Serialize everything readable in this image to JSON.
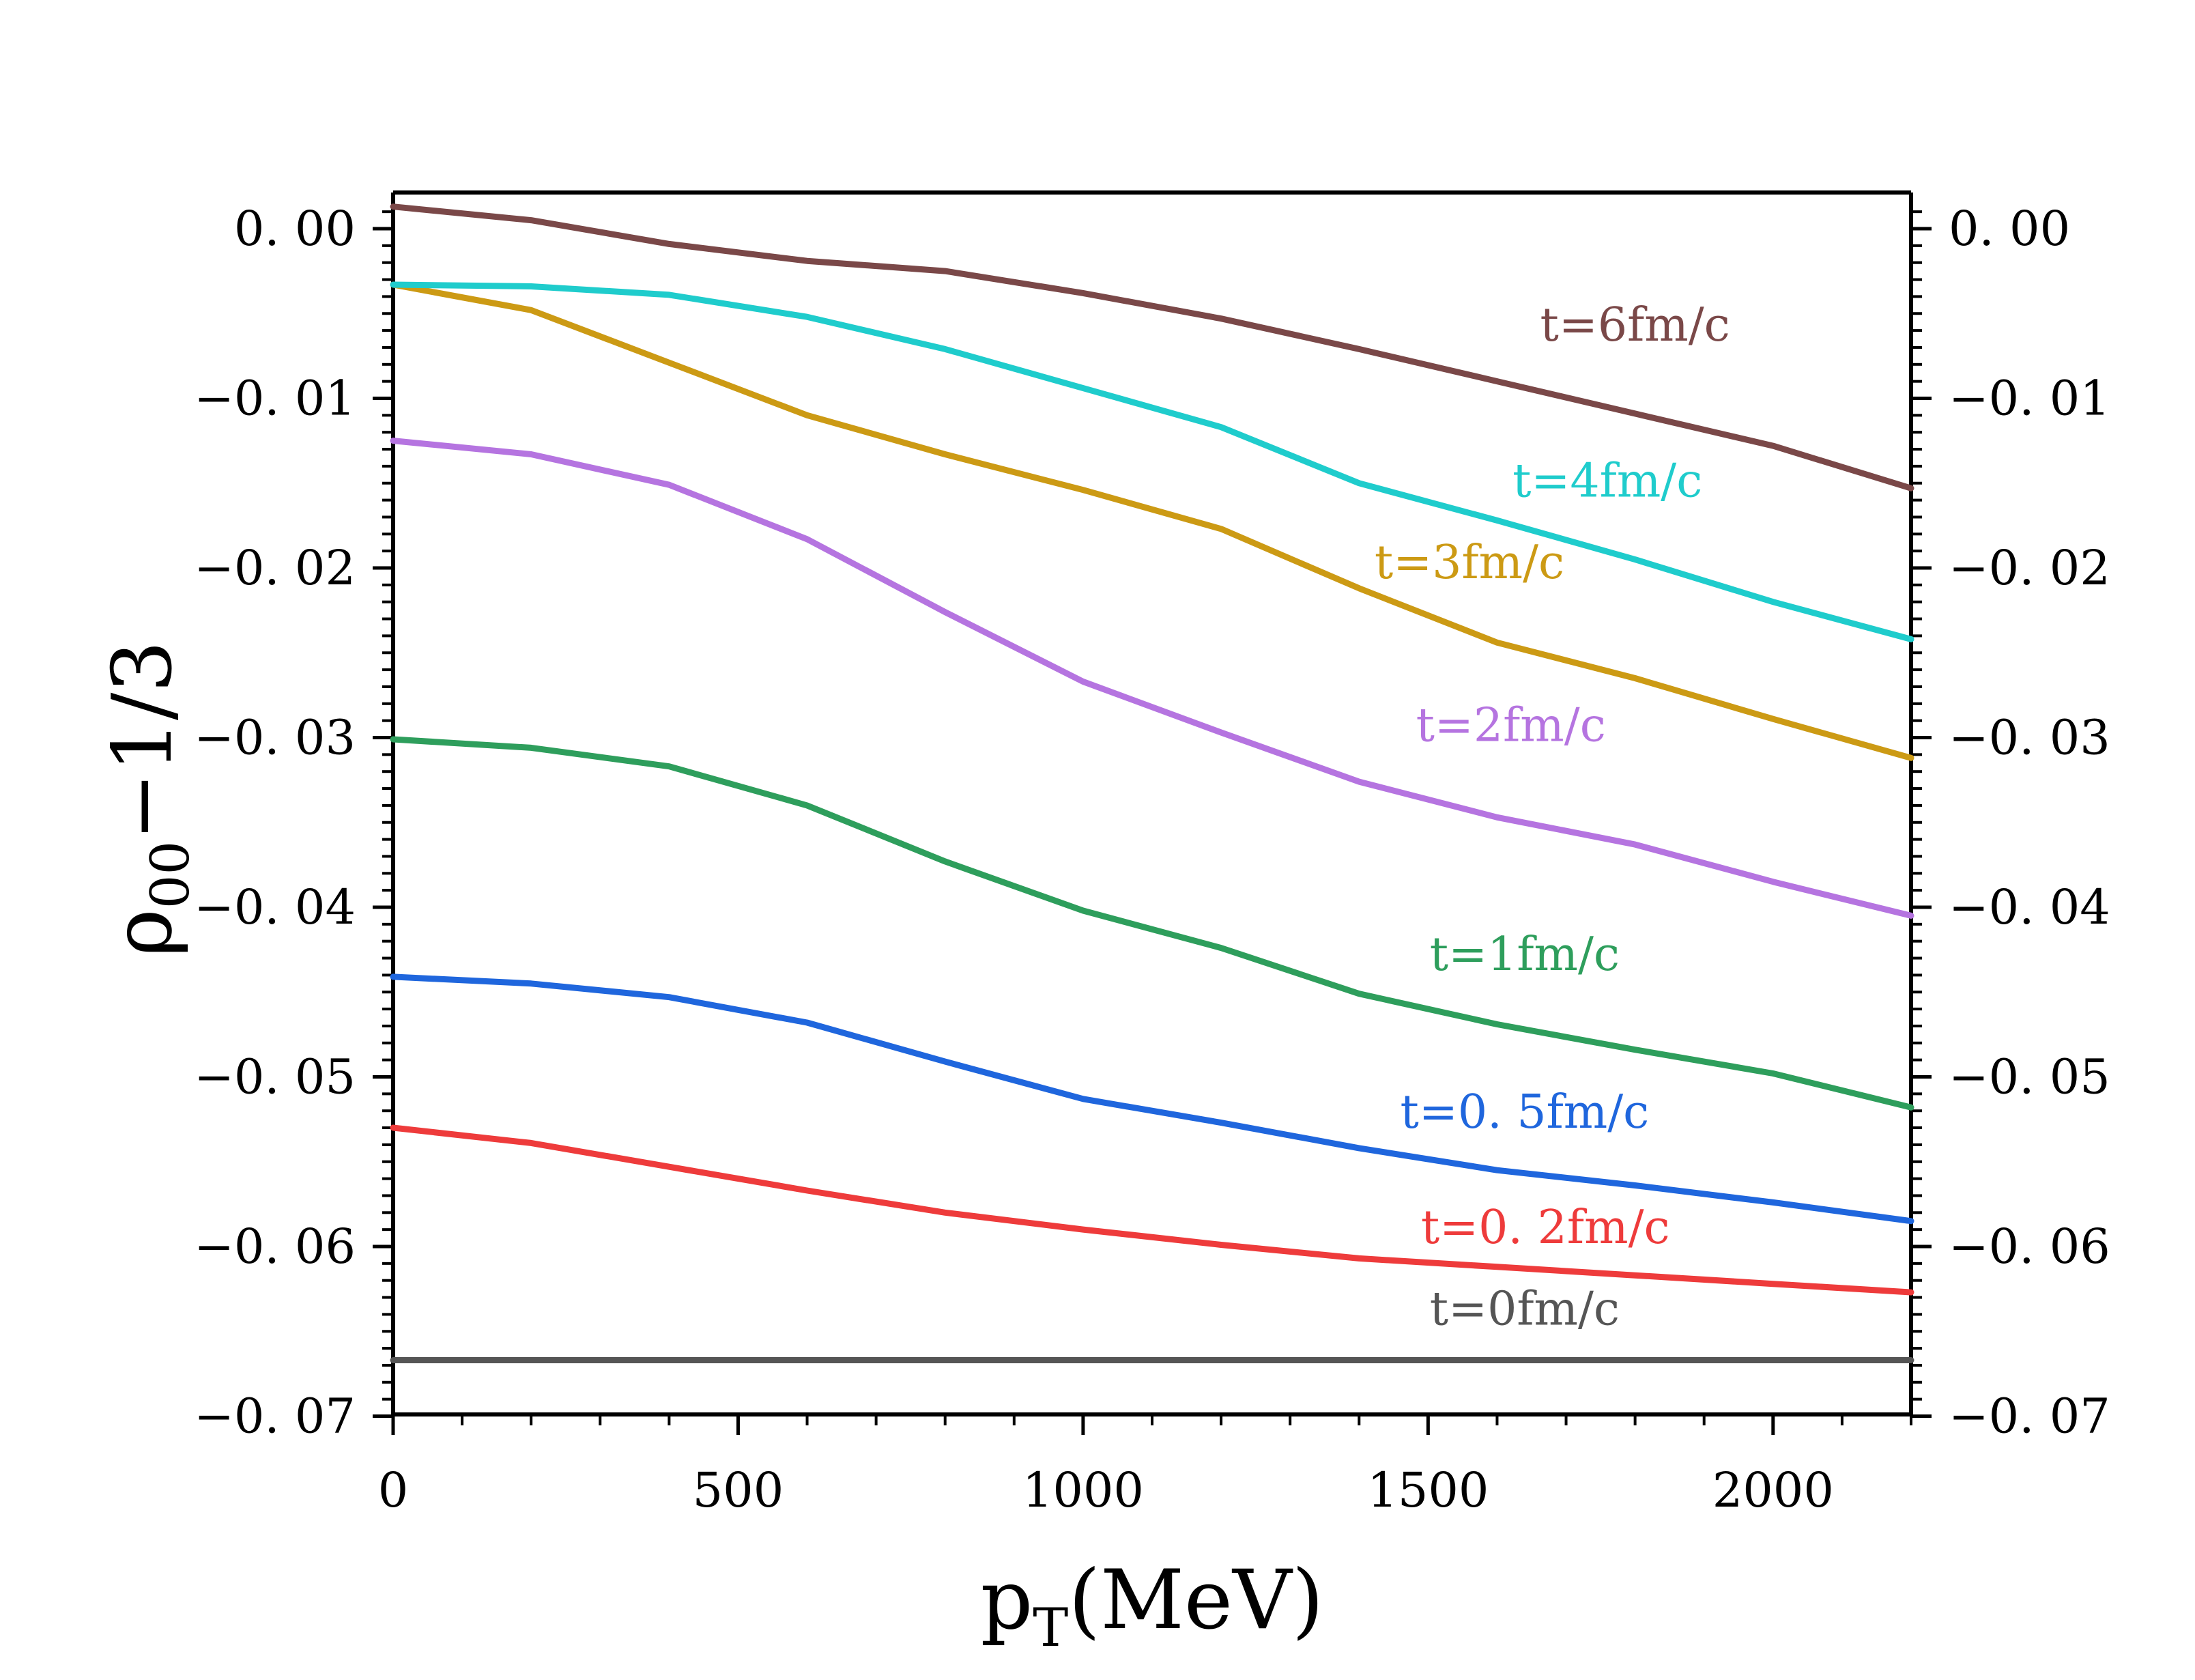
{
  "chart_data": {
    "type": "line",
    "title": "",
    "xlabel": "p_T (MeV)",
    "ylabel": "ρ_00 − 1/3",
    "xlim": [
      0,
      2200
    ],
    "ylim": [
      -0.07,
      0.002
    ],
    "x_ticks": [
      0,
      500,
      1000,
      1500,
      2000
    ],
    "x_tick_labels": [
      "0",
      "500",
      "1000",
      "1500",
      "2000"
    ],
    "y_ticks": [
      0.0,
      -0.01,
      -0.02,
      -0.03,
      -0.04,
      -0.05,
      -0.06,
      -0.07
    ],
    "y_tick_labels": [
      "0. 00",
      "−0. 01",
      "−0. 02",
      "−0. 03",
      "−0. 04",
      "−0. 05",
      "−0. 06",
      "−0. 07"
    ],
    "grid": false,
    "x": [
      0,
      200,
      400,
      600,
      800,
      1000,
      1200,
      1400,
      1600,
      1800,
      2000,
      2200
    ],
    "series": [
      {
        "name": "t=0fm/c",
        "label": "t=0fm/c",
        "color": "#555555",
        "values": [
          -0.0667,
          -0.0667,
          -0.0667,
          -0.0667,
          -0.0667,
          -0.0667,
          -0.0667,
          -0.0667,
          -0.0667,
          -0.0667,
          -0.0667,
          -0.0667
        ],
        "label_at": [
          1640,
          -0.0646
        ]
      },
      {
        "name": "t=0.2fm/c",
        "label": "t=0. 2fm/c",
        "color": "#ee3b3b",
        "values": [
          -0.053,
          -0.0539,
          -0.0553,
          -0.0567,
          -0.058,
          -0.059,
          -0.0599,
          -0.0607,
          -0.0612,
          -0.0617,
          -0.0622,
          -0.0627
        ],
        "label_at": [
          1670,
          -0.0598
        ]
      },
      {
        "name": "t=0.5fm/c",
        "label": "t=0. 5fm/c",
        "color": "#1f66dd",
        "values": [
          -0.0441,
          -0.0445,
          -0.0453,
          -0.0468,
          -0.0491,
          -0.0513,
          -0.0527,
          -0.0542,
          -0.0555,
          -0.0564,
          -0.0574,
          -0.0585
        ],
        "label_at": [
          1640,
          -0.053
        ]
      },
      {
        "name": "t=1fm/c",
        "label": "t=1fm/c",
        "color": "#2e9e5c",
        "values": [
          -0.0301,
          -0.0306,
          -0.0317,
          -0.034,
          -0.0373,
          -0.0402,
          -0.0424,
          -0.0451,
          -0.0469,
          -0.0484,
          -0.0498,
          -0.0518
        ],
        "label_at": [
          1640,
          -0.0437
        ]
      },
      {
        "name": "t=2fm/c",
        "label": "t=2fm/c",
        "color": "#b574e0",
        "values": [
          -0.0125,
          -0.0133,
          -0.0151,
          -0.0183,
          -0.0226,
          -0.0267,
          -0.0297,
          -0.0326,
          -0.0347,
          -0.0363,
          -0.0385,
          -0.0405
        ],
        "label_at": [
          1620,
          -0.0302
        ]
      },
      {
        "name": "t=3fm/c",
        "label": "t=3fm/c",
        "color": "#cc9a14",
        "values": [
          -0.0033,
          -0.0048,
          -0.0079,
          -0.011,
          -0.0133,
          -0.0154,
          -0.0177,
          -0.0212,
          -0.0244,
          -0.0265,
          -0.0289,
          -0.0312
        ],
        "label_at": [
          1560,
          -0.0206
        ]
      },
      {
        "name": "t=4fm/c",
        "label": "t=4fm/c",
        "color": "#1fcccc",
        "values": [
          -0.0033,
          -0.0034,
          -0.0039,
          -0.0052,
          -0.0071,
          -0.0094,
          -0.0117,
          -0.015,
          -0.0172,
          -0.0195,
          -0.022,
          -0.0242
        ],
        "label_at": [
          1760,
          -0.0158
        ]
      },
      {
        "name": "t=6fm/c",
        "label": "t=6fm/c",
        "color": "#7a4848",
        "values": [
          0.0013,
          0.0005,
          -0.0009,
          -0.0019,
          -0.0025,
          -0.0038,
          -0.0053,
          -0.0071,
          -0.009,
          -0.0109,
          -0.0128,
          -0.0153
        ],
        "label_at": [
          1800,
          -0.0066
        ]
      }
    ]
  }
}
